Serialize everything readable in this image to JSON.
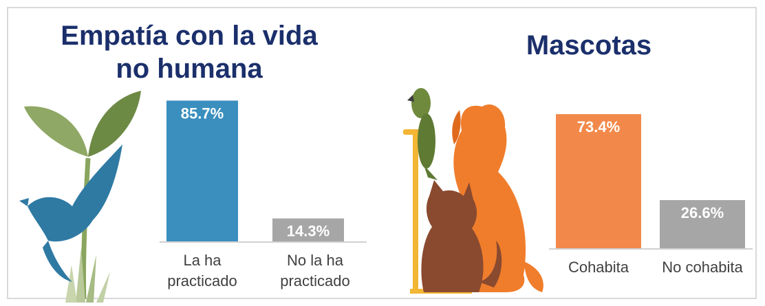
{
  "chart_data": [
    {
      "type": "bar",
      "title": "Empatía con la vida no humana",
      "title_lines": [
        "Empatía con la vida",
        "no humana"
      ],
      "categories": [
        "La ha practicado",
        "No la ha practicado"
      ],
      "category_lines": [
        [
          "La ha",
          "practicado"
        ],
        [
          "No la ha",
          "practicado"
        ]
      ],
      "values": [
        85.7,
        14.3
      ],
      "value_labels": [
        "85.7%",
        "14.3%"
      ],
      "colors": [
        "#3a8fbe",
        "#a6a6a6"
      ],
      "ylim": [
        0,
        100
      ],
      "grid": false,
      "illustration": "bird-and-plant-icon"
    },
    {
      "type": "bar",
      "title": "Mascotas",
      "title_lines": [
        "Mascotas"
      ],
      "categories": [
        "Cohabita",
        "No cohabita"
      ],
      "category_lines": [
        [
          "Cohabita"
        ],
        [
          "No cohabita"
        ]
      ],
      "values": [
        73.4,
        26.6
      ],
      "value_labels": [
        "73.4%",
        "26.6%"
      ],
      "colors": [
        "#f2894a",
        "#a6a6a6"
      ],
      "ylim": [
        0,
        100
      ],
      "grid": false,
      "illustration": "pets-icon"
    }
  ]
}
